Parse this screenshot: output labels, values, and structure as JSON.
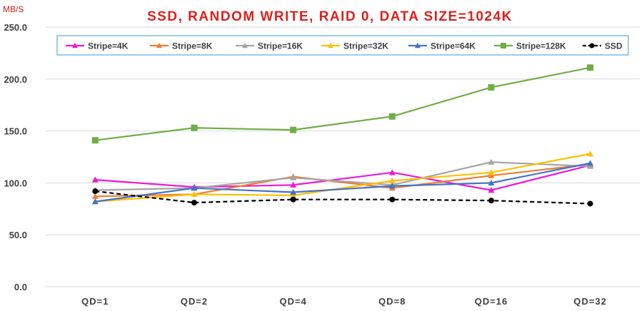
{
  "chart_data": {
    "type": "line",
    "title": "SSD, RANDOM WRITE, RAID 0, DATA SIZE=1024K",
    "ylabel": "MB/S",
    "xlabel": "",
    "categories": [
      "QD=1",
      "QD=2",
      "QD=4",
      "QD=8",
      "QD=16",
      "QD=32"
    ],
    "ylim": [
      0,
      250
    ],
    "yticks": [
      "0.0",
      "50.0",
      "100.0",
      "150.0",
      "200.0",
      "250.0"
    ],
    "ytick_values": [
      0,
      50,
      100,
      150,
      200,
      250
    ],
    "grid": "horizontal",
    "legend_position": "top",
    "series": [
      {
        "name": "Stripe=4K",
        "color": "#e81ad8",
        "marker": "triangle",
        "dash": false,
        "values": [
          103,
          96,
          98,
          110,
          93,
          117
        ]
      },
      {
        "name": "Stripe=8K",
        "color": "#ed7d31",
        "marker": "triangle",
        "dash": false,
        "values": [
          87,
          89,
          106,
          95,
          107,
          118
        ]
      },
      {
        "name": "Stripe=16K",
        "color": "#a5a5a5",
        "marker": "triangle",
        "dash": false,
        "values": [
          93,
          95,
          105,
          98,
          120,
          116
        ]
      },
      {
        "name": "Stripe=32K",
        "color": "#ffc000",
        "marker": "triangle",
        "dash": false,
        "values": [
          82,
          89,
          88,
          102,
          110,
          128
        ]
      },
      {
        "name": "Stripe=64K",
        "color": "#4472c4",
        "marker": "triangle",
        "dash": false,
        "values": [
          82,
          95,
          91,
          97,
          100,
          119
        ]
      },
      {
        "name": "Stripe=128K",
        "color": "#70ad47",
        "marker": "square",
        "dash": false,
        "values": [
          141,
          153,
          151,
          164,
          192,
          211
        ]
      },
      {
        "name": "SSD",
        "color": "#000000",
        "marker": "circle",
        "dash": true,
        "values": [
          92,
          81,
          84,
          84,
          83,
          80
        ]
      }
    ]
  }
}
